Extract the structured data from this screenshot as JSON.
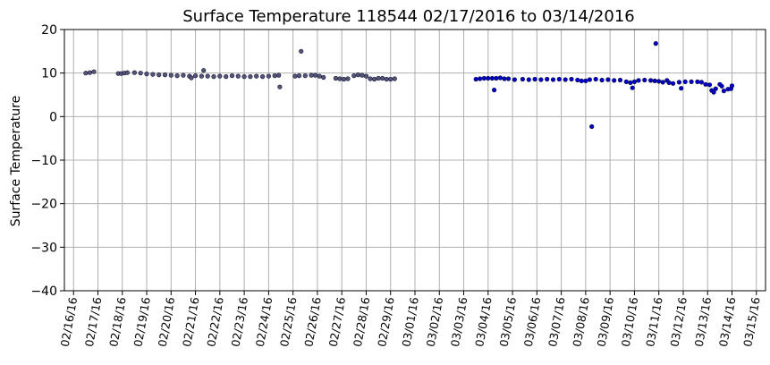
{
  "chart_data": {
    "type": "scatter",
    "title": "Surface Temperature 118544  02/17/2016 to 03/14/2016",
    "xlabel": "",
    "ylabel": "Surface Temperature",
    "ylim": [
      -40,
      20
    ],
    "xlim": [
      "02/15/2016 15:00",
      "03/15/2016 09:00"
    ],
    "y_ticks": [
      20,
      10,
      0,
      -10,
      -20,
      -30,
      -40
    ],
    "x_ticks": [
      "02/16/16",
      "02/17/16",
      "02/18/16",
      "02/19/16",
      "02/20/16",
      "02/21/16",
      "02/22/16",
      "02/23/16",
      "02/24/16",
      "02/25/16",
      "02/26/16",
      "02/27/16",
      "02/28/16",
      "02/29/16",
      "03/01/16",
      "03/02/16",
      "03/03/16",
      "03/04/16",
      "03/05/16",
      "03/06/16",
      "03/07/16",
      "03/08/16",
      "03/09/16",
      "03/10/16",
      "03/11/16",
      "03/12/16",
      "03/13/16",
      "03/14/16",
      "03/15/16"
    ],
    "grid": true,
    "series": [
      {
        "color": "#555577",
        "points": [
          [
            "02/16/2016 12:00",
            10.0
          ],
          [
            "02/16/2016 16:00",
            10.1
          ],
          [
            "02/16/2016 20:00",
            10.3
          ],
          [
            "02/17/2016 20:00",
            9.9
          ],
          [
            "02/17/2016 23:00",
            9.9
          ],
          [
            "02/18/2016 02:00",
            10.0
          ],
          [
            "02/18/2016 05:00",
            10.1
          ],
          [
            "02/18/2016 12:00",
            10.1
          ],
          [
            "02/18/2016 18:00",
            10.0
          ],
          [
            "02/19/2016 00:00",
            9.8
          ],
          [
            "02/19/2016 06:00",
            9.7
          ],
          [
            "02/19/2016 12:00",
            9.6
          ],
          [
            "02/19/2016 18:00",
            9.6
          ],
          [
            "02/20/2016 00:00",
            9.5
          ],
          [
            "02/20/2016 06:00",
            9.4
          ],
          [
            "02/20/2016 12:00",
            9.5
          ],
          [
            "02/20/2016 18:00",
            9.3
          ],
          [
            "02/20/2016 20:00",
            8.9
          ],
          [
            "02/21/2016 00:00",
            9.4
          ],
          [
            "02/21/2016 06:00",
            9.3
          ],
          [
            "02/21/2016 08:00",
            10.6
          ],
          [
            "02/21/2016 12:00",
            9.3
          ],
          [
            "02/21/2016 18:00",
            9.2
          ],
          [
            "02/22/2016 00:00",
            9.3
          ],
          [
            "02/22/2016 06:00",
            9.2
          ],
          [
            "02/22/2016 12:00",
            9.4
          ],
          [
            "02/22/2016 18:00",
            9.3
          ],
          [
            "02/23/2016 00:00",
            9.2
          ],
          [
            "02/23/2016 06:00",
            9.2
          ],
          [
            "02/23/2016 12:00",
            9.3
          ],
          [
            "02/23/2016 18:00",
            9.2
          ],
          [
            "02/24/2016 00:00",
            9.3
          ],
          [
            "02/24/2016 06:00",
            9.4
          ],
          [
            "02/24/2016 10:00",
            9.5
          ],
          [
            "02/24/2016 11:00",
            6.8
          ],
          [
            "02/25/2016 02:00",
            9.3
          ],
          [
            "02/25/2016 06:00",
            9.4
          ],
          [
            "02/25/2016 08:00",
            15.0
          ],
          [
            "02/25/2016 12:00",
            9.4
          ],
          [
            "02/25/2016 18:00",
            9.5
          ],
          [
            "02/25/2016 22:00",
            9.5
          ],
          [
            "02/26/2016 02:00",
            9.3
          ],
          [
            "02/26/2016 06:00",
            9.0
          ],
          [
            "02/26/2016 18:00",
            8.8
          ],
          [
            "02/26/2016 22:00",
            8.7
          ],
          [
            "02/27/2016 02:00",
            8.6
          ],
          [
            "02/27/2016 06:00",
            8.7
          ],
          [
            "02/27/2016 12:00",
            9.4
          ],
          [
            "02/27/2016 16:00",
            9.6
          ],
          [
            "02/27/2016 20:00",
            9.5
          ],
          [
            "02/28/2016 00:00",
            9.3
          ],
          [
            "02/28/2016 04:00",
            8.7
          ],
          [
            "02/28/2016 08:00",
            8.6
          ],
          [
            "02/28/2016 12:00",
            8.8
          ],
          [
            "02/28/2016 16:00",
            8.8
          ],
          [
            "02/28/2016 20:00",
            8.6
          ],
          [
            "02/29/2016 00:00",
            8.6
          ],
          [
            "02/29/2016 04:00",
            8.7
          ]
        ]
      },
      {
        "color": "#0000cc",
        "points": [
          [
            "03/03/2016 12:00",
            8.6
          ],
          [
            "03/03/2016 16:00",
            8.7
          ],
          [
            "03/03/2016 20:00",
            8.8
          ],
          [
            "03/04/2016 00:00",
            8.8
          ],
          [
            "03/04/2016 04:00",
            8.8
          ],
          [
            "03/04/2016 06:00",
            6.1
          ],
          [
            "03/04/2016 08:00",
            8.8
          ],
          [
            "03/04/2016 12:00",
            8.9
          ],
          [
            "03/04/2016 16:00",
            8.7
          ],
          [
            "03/04/2016 20:00",
            8.7
          ],
          [
            "03/05/2016 02:00",
            8.5
          ],
          [
            "03/05/2016 10:00",
            8.6
          ],
          [
            "03/05/2016 16:00",
            8.5
          ],
          [
            "03/05/2016 22:00",
            8.6
          ],
          [
            "03/06/2016 04:00",
            8.5
          ],
          [
            "03/06/2016 10:00",
            8.6
          ],
          [
            "03/06/2016 16:00",
            8.5
          ],
          [
            "03/06/2016 22:00",
            8.6
          ],
          [
            "03/07/2016 04:00",
            8.5
          ],
          [
            "03/07/2016 10:00",
            8.6
          ],
          [
            "03/07/2016 16:00",
            8.4
          ],
          [
            "03/07/2016 20:00",
            8.2
          ],
          [
            "03/08/2016 00:00",
            8.2
          ],
          [
            "03/08/2016 04:00",
            8.5
          ],
          [
            "03/08/2016 06:00",
            -2.3
          ],
          [
            "03/08/2016 10:00",
            8.6
          ],
          [
            "03/08/2016 16:00",
            8.4
          ],
          [
            "03/08/2016 22:00",
            8.5
          ],
          [
            "03/09/2016 04:00",
            8.3
          ],
          [
            "03/09/2016 10:00",
            8.4
          ],
          [
            "03/09/2016 16:00",
            8.0
          ],
          [
            "03/09/2016 20:00",
            7.8
          ],
          [
            "03/09/2016 22:00",
            6.6
          ],
          [
            "03/10/2016 00:00",
            8.0
          ],
          [
            "03/10/2016 04:00",
            8.3
          ],
          [
            "03/10/2016 10:00",
            8.4
          ],
          [
            "03/10/2016 16:00",
            8.3
          ],
          [
            "03/10/2016 20:00",
            8.2
          ],
          [
            "03/10/2016 21:00",
            16.8
          ],
          [
            "03/11/2016 00:00",
            8.1
          ],
          [
            "03/11/2016 04:00",
            7.9
          ],
          [
            "03/11/2016 08:00",
            8.3
          ],
          [
            "03/11/2016 10:00",
            7.8
          ],
          [
            "03/11/2016 14:00",
            7.6
          ],
          [
            "03/11/2016 20:00",
            7.9
          ],
          [
            "03/11/2016 22:00",
            6.5
          ],
          [
            "03/12/2016 02:00",
            8.0
          ],
          [
            "03/12/2016 08:00",
            8.0
          ],
          [
            "03/12/2016 14:00",
            8.0
          ],
          [
            "03/12/2016 18:00",
            7.9
          ],
          [
            "03/12/2016 22:00",
            7.4
          ],
          [
            "03/13/2016 02:00",
            7.3
          ],
          [
            "03/13/2016 04:00",
            6.0
          ],
          [
            "03/13/2016 06:00",
            5.6
          ],
          [
            "03/13/2016 08:00",
            6.4
          ],
          [
            "03/13/2016 12:00",
            7.4
          ],
          [
            "03/13/2016 14:00",
            7.0
          ],
          [
            "03/13/2016 16:00",
            5.9
          ],
          [
            "03/13/2016 20:00",
            6.3
          ],
          [
            "03/13/2016 23:00",
            6.4
          ],
          [
            "03/14/2016 00:00",
            7.1
          ]
        ]
      }
    ]
  }
}
